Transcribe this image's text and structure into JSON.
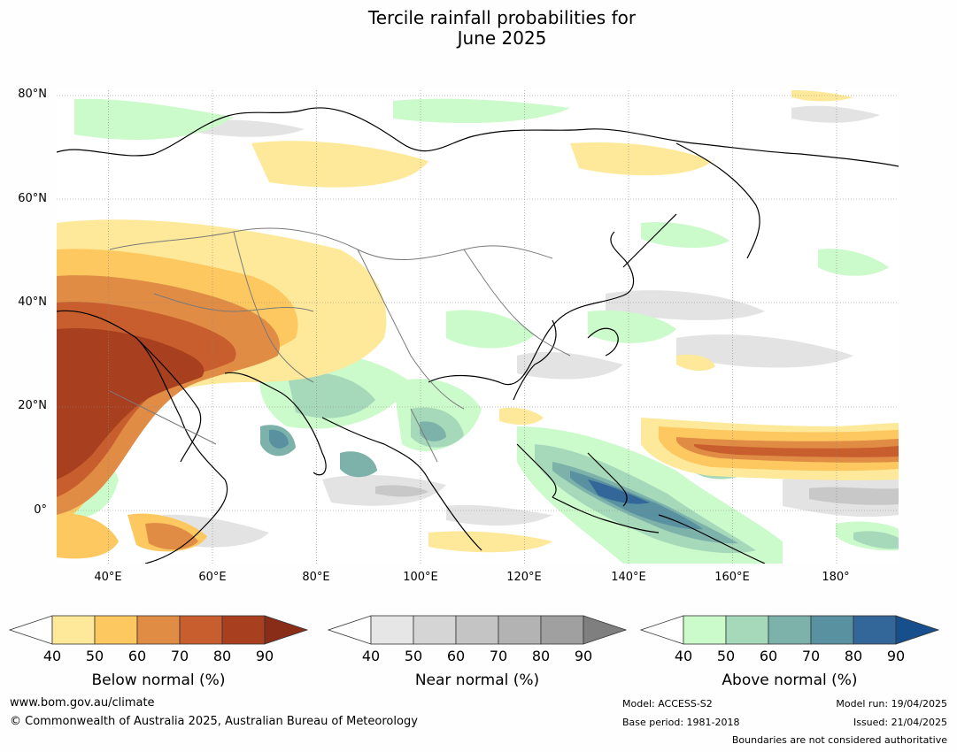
{
  "title": "Tercile rainfall probabilities for\nJune 2025",
  "map": {
    "lat_labels": [
      "80°N",
      "60°N",
      "40°N",
      "20°N",
      "0°"
    ],
    "lon_labels": [
      "40°E",
      "60°E",
      "80°E",
      "100°E",
      "120°E",
      "140°E",
      "160°E",
      "180°"
    ],
    "lon_range_deg": [
      30,
      192
    ],
    "lat_range_deg": [
      -10,
      81
    ]
  },
  "legends": [
    {
      "title": "Below normal (%)",
      "ticks": [
        "40",
        "50",
        "60",
        "70",
        "80",
        "90"
      ],
      "colors": [
        "#ffffff",
        "#fee99a",
        "#fdc860",
        "#e08c45",
        "#c85e2e",
        "#a8401f",
        "#8a2d18"
      ]
    },
    {
      "title": "Near normal (%)",
      "ticks": [
        "40",
        "50",
        "60",
        "70",
        "80",
        "90"
      ],
      "colors": [
        "#ffffff",
        "#e6e6e6",
        "#d5d5d5",
        "#c4c4c4",
        "#b3b3b3",
        "#a0a0a0",
        "#7f7f7f"
      ]
    },
    {
      "title": "Above normal (%)",
      "ticks": [
        "40",
        "50",
        "60",
        "70",
        "80",
        "90"
      ],
      "colors": [
        "#ffffff",
        "#cbfacb",
        "#a6d9b9",
        "#7db2aa",
        "#5a91a0",
        "#336699",
        "#174e8c"
      ]
    }
  ],
  "footer": {
    "website": "www.bom.gov.au/climate",
    "copyright": "© Commonwealth of Australia 2025, Australian Bureau of Meteorology",
    "model": "Model: ACCESS-S2",
    "base_period": "Base period: 1981-2018",
    "model_run": "Model run: 19/04/2025",
    "issued": "Issued: 21/04/2025",
    "disclaimer": "Boundaries are not considered authoritative"
  }
}
